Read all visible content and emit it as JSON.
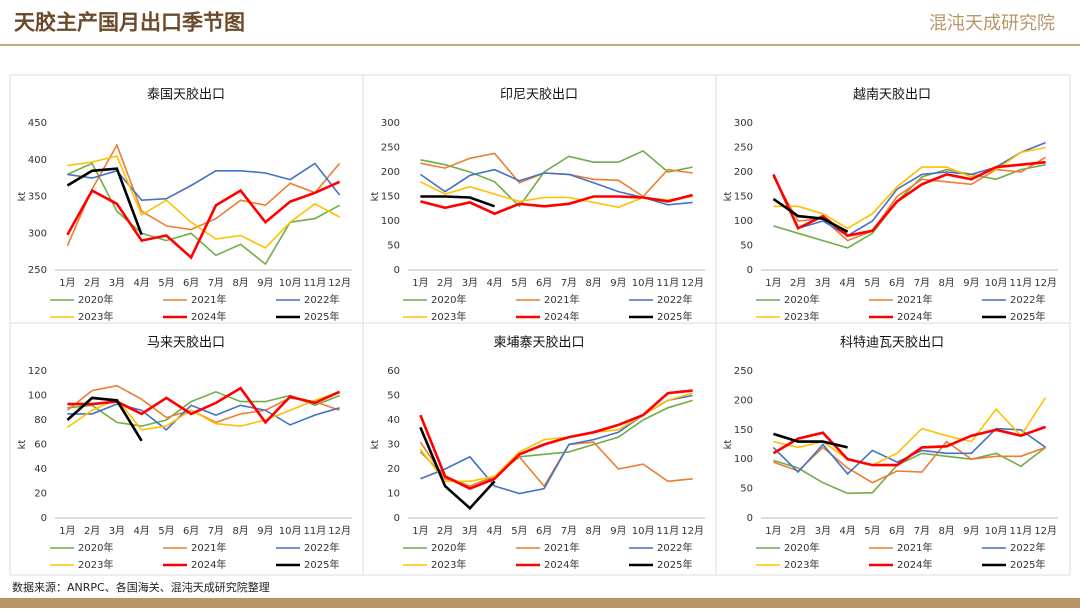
{
  "header": {
    "title": "天胶主产国月出口季节图",
    "logo": "混沌天成研究院"
  },
  "footer": "数据来源：ANRPC、各国海关、混沌天成研究院整理",
  "chart_data": [
    {
      "type": "line",
      "title": "泰国天胶出口",
      "y_label": "kt",
      "categories": [
        "1月",
        "2月",
        "3月",
        "4月",
        "5月",
        "6月",
        "7月",
        "8月",
        "9月",
        "10月",
        "11月",
        "12月"
      ],
      "ylim": [
        250,
        450
      ],
      "yticks": [
        250,
        300,
        350,
        400,
        450
      ],
      "series": [
        {
          "name": "2020年",
          "color": "#70ad47",
          "values": [
            380,
            395,
            330,
            300,
            290,
            300,
            270,
            285,
            258,
            315,
            320,
            338
          ]
        },
        {
          "name": "2021年",
          "color": "#ed7d31",
          "values": [
            283,
            360,
            420,
            330,
            310,
            305,
            320,
            345,
            338,
            368,
            355,
            395
          ]
        },
        {
          "name": "2022年",
          "color": "#4472c4",
          "values": [
            380,
            375,
            385,
            345,
            347,
            365,
            385,
            385,
            382,
            373,
            395,
            352
          ]
        },
        {
          "name": "2023年",
          "color": "#ffc000",
          "values": [
            392,
            397,
            405,
            325,
            345,
            315,
            292,
            297,
            280,
            315,
            340,
            322
          ]
        },
        {
          "name": "2024年",
          "color": "#ff0000",
          "values": [
            298,
            358,
            340,
            290,
            297,
            267,
            338,
            358,
            315,
            343,
            355,
            370
          ]
        },
        {
          "name": "2025年",
          "color": "#000000",
          "values": [
            365,
            385,
            388,
            298,
            null,
            null,
            null,
            null,
            null,
            null,
            null,
            null
          ]
        }
      ]
    },
    {
      "type": "line",
      "title": "印尼天胶出口",
      "y_label": "kt",
      "categories": [
        "1月",
        "2月",
        "3月",
        "4月",
        "5月",
        "6月",
        "7月",
        "8月",
        "9月",
        "10月",
        "11月",
        "12月"
      ],
      "ylim": [
        0,
        300
      ],
      "yticks": [
        0,
        50,
        100,
        150,
        200,
        250,
        300
      ],
      "series": [
        {
          "name": "2020年",
          "color": "#70ad47",
          "values": [
            225,
            215,
            200,
            180,
            130,
            200,
            232,
            220,
            220,
            243,
            200,
            210
          ]
        },
        {
          "name": "2021年",
          "color": "#ed7d31",
          "values": [
            218,
            208,
            228,
            238,
            178,
            198,
            195,
            185,
            183,
            150,
            205,
            198
          ]
        },
        {
          "name": "2022年",
          "color": "#4472c4",
          "values": [
            195,
            160,
            193,
            205,
            182,
            198,
            195,
            178,
            160,
            148,
            133,
            138
          ]
        },
        {
          "name": "2023年",
          "color": "#ffc000",
          "values": [
            180,
            155,
            170,
            155,
            140,
            148,
            148,
            138,
            128,
            148,
            143,
            150
          ]
        },
        {
          "name": "2024年",
          "color": "#ff0000",
          "values": [
            140,
            127,
            138,
            115,
            135,
            130,
            135,
            150,
            150,
            148,
            140,
            153
          ]
        },
        {
          "name": "2025年",
          "color": "#000000",
          "values": [
            150,
            150,
            148,
            130,
            null,
            null,
            null,
            null,
            null,
            null,
            null,
            null
          ]
        }
      ]
    },
    {
      "type": "line",
      "title": "越南天胶出口",
      "y_label": "kt",
      "categories": [
        "1月",
        "2月",
        "3月",
        "4月",
        "5月",
        "6月",
        "7月",
        "8月",
        "9月",
        "10月",
        "11月",
        "12月"
      ],
      "ylim": [
        0,
        300
      ],
      "yticks": [
        0,
        50,
        100,
        150,
        200,
        250,
        300
      ],
      "series": [
        {
          "name": "2020年",
          "color": "#70ad47",
          "values": [
            90,
            75,
            60,
            45,
            75,
            140,
            190,
            205,
            195,
            185,
            205,
            215
          ]
        },
        {
          "name": "2021年",
          "color": "#ed7d31",
          "values": [
            190,
            100,
            105,
            60,
            80,
            150,
            185,
            180,
            175,
            205,
            200,
            230
          ]
        },
        {
          "name": "2022年",
          "color": "#4472c4",
          "values": [
            195,
            85,
            100,
            70,
            100,
            165,
            195,
            200,
            195,
            210,
            240,
            260
          ]
        },
        {
          "name": "2023年",
          "color": "#ffc000",
          "values": [
            130,
            130,
            115,
            85,
            115,
            170,
            210,
            210,
            190,
            205,
            240,
            250
          ]
        },
        {
          "name": "2024年",
          "color": "#ff0000",
          "values": [
            195,
            85,
            110,
            70,
            80,
            140,
            175,
            195,
            185,
            210,
            215,
            220
          ]
        },
        {
          "name": "2025年",
          "color": "#000000",
          "values": [
            145,
            110,
            105,
            78,
            null,
            null,
            null,
            null,
            null,
            null,
            null,
            null
          ]
        }
      ]
    },
    {
      "type": "line",
      "title": "马来天胶出口",
      "y_label": "kt",
      "categories": [
        "1月",
        "2月",
        "3月",
        "4月",
        "5月",
        "6月",
        "7月",
        "8月",
        "9月",
        "10月",
        "11月",
        "12月"
      ],
      "ylim": [
        0,
        120
      ],
      "yticks": [
        0,
        20,
        40,
        60,
        80,
        100,
        120
      ],
      "series": [
        {
          "name": "2020年",
          "color": "#70ad47",
          "values": [
            90,
            92,
            78,
            75,
            80,
            95,
            103,
            95,
            95,
            100,
            92,
            100
          ]
        },
        {
          "name": "2021年",
          "color": "#ed7d31",
          "values": [
            88,
            104,
            108,
            97,
            82,
            88,
            78,
            85,
            88,
            98,
            95,
            88
          ]
        },
        {
          "name": "2022年",
          "color": "#4472c4",
          "values": [
            85,
            85,
            93,
            88,
            72,
            92,
            84,
            92,
            88,
            76,
            84,
            90
          ]
        },
        {
          "name": "2023年",
          "color": "#ffc000",
          "values": [
            74,
            88,
            97,
            72,
            75,
            88,
            77,
            75,
            80,
            88,
            96,
            103
          ]
        },
        {
          "name": "2024年",
          "color": "#ff0000",
          "values": [
            93,
            93,
            95,
            85,
            98,
            85,
            94,
            106,
            78,
            99,
            94,
            103
          ]
        },
        {
          "name": "2025年",
          "color": "#000000",
          "values": [
            80,
            98,
            96,
            63,
            null,
            null,
            null,
            null,
            null,
            null,
            null,
            null
          ]
        }
      ]
    },
    {
      "type": "line",
      "title": "柬埔寨天胶出口",
      "y_label": "kt",
      "categories": [
        "1月",
        "2月",
        "3月",
        "4月",
        "5月",
        "6月",
        "7月",
        "8月",
        "9月",
        "10月",
        "11月",
        "12月"
      ],
      "ylim": [
        0,
        60
      ],
      "yticks": [
        0,
        10,
        20,
        30,
        40,
        50,
        60
      ],
      "series": [
        {
          "name": "2020年",
          "color": "#70ad47",
          "values": [
            27,
            17,
            13,
            17,
            25,
            26,
            27,
            30,
            33,
            40,
            45,
            48
          ]
        },
        {
          "name": "2021年",
          "color": "#ed7d31",
          "values": [
            31,
            16,
            13,
            17,
            25,
            13,
            30,
            31,
            20,
            22,
            15,
            16
          ]
        },
        {
          "name": "2022年",
          "color": "#4472c4",
          "values": [
            16,
            20,
            25,
            13,
            10,
            12,
            30,
            32,
            35,
            42,
            48,
            50
          ]
        },
        {
          "name": "2023年",
          "color": "#ffc000",
          "values": [
            28,
            15,
            15,
            17,
            27,
            32,
            33,
            35,
            36,
            42,
            48,
            51
          ]
        },
        {
          "name": "2024年",
          "color": "#ff0000",
          "values": [
            42,
            17,
            12,
            16,
            26,
            30,
            33,
            35,
            38,
            42,
            51,
            52
          ]
        },
        {
          "name": "2025年",
          "color": "#000000",
          "values": [
            37,
            13,
            4,
            15,
            null,
            null,
            null,
            null,
            null,
            null,
            null,
            null
          ]
        }
      ]
    },
    {
      "type": "line",
      "title": "科特迪瓦天胶出口",
      "y_label": "kt",
      "categories": [
        "1月",
        "2月",
        "3月",
        "4月",
        "5月",
        "6月",
        "7月",
        "8月",
        "9月",
        "10月",
        "11月",
        "12月"
      ],
      "ylim": [
        0,
        250
      ],
      "yticks": [
        0,
        50,
        100,
        150,
        200,
        250
      ],
      "series": [
        {
          "name": "2020年",
          "color": "#70ad47",
          "values": [
            98,
            85,
            60,
            42,
            43,
            90,
            110,
            105,
            100,
            110,
            88,
            120
          ]
        },
        {
          "name": "2021年",
          "color": "#ed7d31",
          "values": [
            95,
            80,
            120,
            85,
            60,
            80,
            78,
            130,
            100,
            105,
            105,
            120
          ]
        },
        {
          "name": "2022年",
          "color": "#4472c4",
          "values": [
            120,
            78,
            125,
            75,
            115,
            95,
            115,
            110,
            110,
            152,
            150,
            120
          ]
        },
        {
          "name": "2023年",
          "color": "#ffc000",
          "values": [
            130,
            120,
            130,
            100,
            90,
            110,
            152,
            140,
            130,
            185,
            140,
            205
          ]
        },
        {
          "name": "2024年",
          "color": "#ff0000",
          "values": [
            110,
            135,
            145,
            100,
            90,
            90,
            120,
            122,
            140,
            150,
            140,
            155
          ]
        },
        {
          "name": "2025年",
          "color": "#000000",
          "values": [
            143,
            130,
            130,
            120,
            null,
            null,
            null,
            null,
            null,
            null,
            null,
            null
          ]
        }
      ]
    }
  ]
}
